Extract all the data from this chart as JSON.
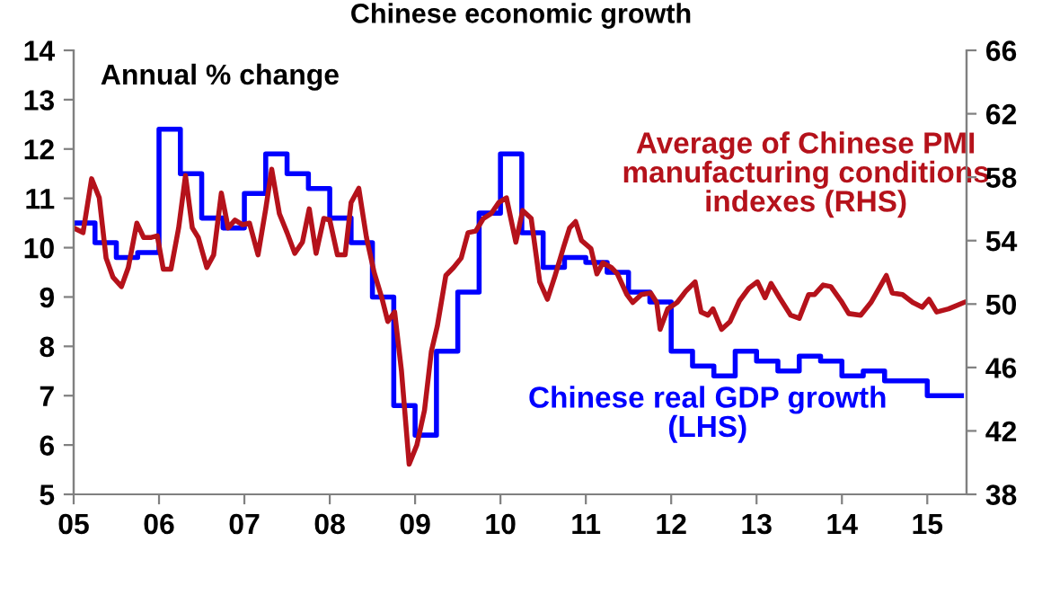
{
  "chart_data": {
    "type": "line",
    "title": "Chinese economic growth",
    "annotations": [
      "Annual % change"
    ],
    "xlim": [
      2005,
      2015.46
    ],
    "xticks": [
      {
        "value": 2005,
        "label": "05"
      },
      {
        "value": 2006,
        "label": "06"
      },
      {
        "value": 2007,
        "label": "07"
      },
      {
        "value": 2008,
        "label": "08"
      },
      {
        "value": 2009,
        "label": "09"
      },
      {
        "value": 2010,
        "label": "10"
      },
      {
        "value": 2011,
        "label": "11"
      },
      {
        "value": 2012,
        "label": "12"
      },
      {
        "value": 2013,
        "label": "13"
      },
      {
        "value": 2014,
        "label": "14"
      },
      {
        "value": 2015,
        "label": "15"
      }
    ],
    "ylim": [
      5,
      14
    ],
    "yticks": [
      5,
      6,
      7,
      8,
      9,
      10,
      11,
      12,
      13,
      14
    ],
    "y2lim": [
      38,
      66
    ],
    "y2ticks": [
      38,
      42,
      46,
      50,
      54,
      58,
      62,
      66
    ],
    "grid": false,
    "legend": false,
    "line_style": "solid",
    "marker": "none",
    "series": [
      {
        "name": "Chinese real GDP growth (LHS)",
        "type": "step",
        "axis": "y",
        "color": "#0000ff",
        "x": [
          2005,
          2005.25,
          2005.5,
          2005.75,
          2006,
          2006.25,
          2006.5,
          2006.75,
          2007,
          2007.25,
          2007.5,
          2007.75,
          2008,
          2008.25,
          2008.5,
          2008.75,
          2009,
          2009.25,
          2009.5,
          2009.75,
          2010,
          2010.25,
          2010.5,
          2010.75,
          2011,
          2011.25,
          2011.5,
          2011.75,
          2012,
          2012.25,
          2012.5,
          2012.75,
          2013,
          2013.25,
          2013.5,
          2013.75,
          2014,
          2014.25,
          2014.5,
          2014.75,
          2015,
          2015.4
        ],
        "values": [
          10.5,
          10.1,
          9.8,
          9.9,
          12.4,
          11.5,
          10.6,
          10.4,
          11.1,
          11.9,
          11.5,
          11.2,
          10.6,
          10.1,
          9.0,
          6.8,
          6.2,
          7.9,
          9.1,
          10.7,
          11.9,
          10.3,
          9.6,
          9.8,
          9.7,
          9.5,
          9.1,
          8.9,
          7.9,
          7.6,
          7.4,
          7.9,
          7.7,
          7.5,
          7.8,
          7.7,
          7.4,
          7.5,
          7.3,
          7.3,
          7.0,
          7.0
        ]
      },
      {
        "name": "Average of Chinese PMI manufacturing conditions indexes (RHS)",
        "axis": "y2",
        "color": "#b5121b",
        "x": [
          2005.0,
          2005.11,
          2005.21,
          2005.3,
          2005.38,
          2005.46,
          2005.56,
          2005.64,
          2005.74,
          2005.82,
          2005.91,
          2005.98,
          2006.05,
          2006.14,
          2006.23,
          2006.31,
          2006.39,
          2006.46,
          2006.56,
          2006.64,
          2006.73,
          2006.81,
          2006.89,
          2006.98,
          2007.06,
          2007.16,
          2007.25,
          2007.32,
          2007.41,
          2007.5,
          2007.59,
          2007.68,
          2007.76,
          2007.84,
          2007.93,
          2008.0,
          2008.09,
          2008.18,
          2008.25,
          2008.34,
          2008.43,
          2008.52,
          2008.61,
          2008.68,
          2008.76,
          2008.84,
          2008.93,
          2009.02,
          2009.11,
          2009.19,
          2009.26,
          2009.36,
          2009.45,
          2009.54,
          2009.62,
          2009.71,
          2009.8,
          2009.89,
          2009.98,
          2010.07,
          2010.18,
          2010.26,
          2010.36,
          2010.46,
          2010.55,
          2010.64,
          2010.74,
          2010.81,
          2010.88,
          2010.95,
          2011.06,
          2011.13,
          2011.2,
          2011.3,
          2011.37,
          2011.48,
          2011.55,
          2011.65,
          2011.76,
          2011.83,
          2011.87,
          2011.96,
          2012.07,
          2012.17,
          2012.28,
          2012.35,
          2012.43,
          2012.49,
          2012.59,
          2012.69,
          2012.8,
          2012.91,
          2013.01,
          2013.1,
          2013.17,
          2013.27,
          2013.4,
          2013.5,
          2013.61,
          2013.68,
          2013.78,
          2013.87,
          2013.99,
          2014.08,
          2014.22,
          2014.34,
          2014.52,
          2014.59,
          2014.71,
          2014.83,
          2014.94,
          2015.02,
          2015.11,
          2015.25,
          2015.43
        ],
        "values": [
          54.8,
          54.5,
          57.9,
          56.7,
          52.9,
          51.7,
          51.1,
          52.3,
          55.1,
          54.2,
          54.2,
          54.3,
          52.2,
          52.2,
          54.8,
          58.1,
          54.8,
          54.2,
          52.3,
          53.1,
          57.0,
          54.8,
          55.3,
          55.0,
          55.1,
          53.1,
          56.0,
          58.5,
          55.7,
          54.5,
          53.2,
          53.9,
          56.0,
          53.2,
          55.4,
          55.3,
          53.1,
          53.1,
          56.4,
          57.3,
          54.2,
          52.0,
          50.4,
          48.9,
          49.5,
          45.8,
          39.9,
          41.1,
          43.3,
          47.0,
          48.6,
          51.8,
          52.3,
          52.9,
          54.5,
          54.6,
          55.4,
          55.7,
          56.4,
          56.7,
          53.9,
          55.9,
          55.4,
          51.4,
          50.3,
          51.8,
          53.6,
          54.8,
          55.2,
          54.0,
          53.5,
          51.9,
          52.6,
          52.3,
          51.9,
          50.6,
          50.1,
          50.6,
          50.7,
          50.1,
          48.4,
          49.7,
          50.1,
          50.8,
          51.4,
          49.5,
          49.3,
          49.7,
          48.4,
          48.9,
          50.2,
          51.0,
          51.4,
          50.4,
          51.3,
          50.4,
          49.3,
          49.1,
          50.6,
          50.6,
          51.2,
          51.1,
          50.2,
          49.4,
          49.3,
          50.1,
          51.8,
          50.7,
          50.6,
          50.1,
          49.8,
          50.3,
          49.5,
          49.7,
          50.1
        ]
      }
    ]
  }
}
